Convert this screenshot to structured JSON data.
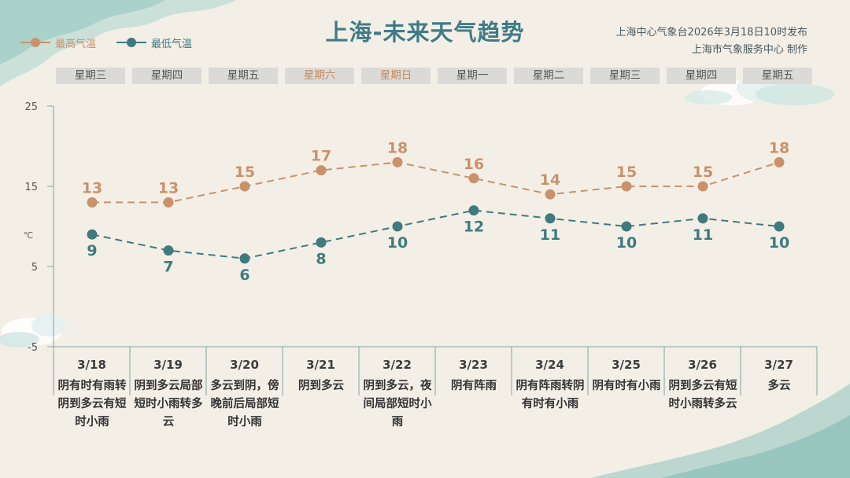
{
  "title": "上海-未来天气趋势",
  "publisher_line1": "上海中心气象台2026年3月18日10时发布",
  "publisher_line2": "上海市气象服务中心  制作",
  "legend": {
    "high_label": "最高气温",
    "low_label": "最低气温"
  },
  "colors": {
    "high": "#c9926b",
    "low": "#3e7a80",
    "axis": "#7ea6a6",
    "weekend": "#c48a60"
  },
  "weekdays": [
    "星期三",
    "星期四",
    "星期五",
    "星期六",
    "星期日",
    "星期一",
    "星期二",
    "星期三",
    "星期四",
    "星期五"
  ],
  "weekend_flags": [
    false,
    false,
    false,
    true,
    true,
    false,
    false,
    false,
    false,
    false
  ],
  "days": [
    {
      "date": "3/18",
      "desc": "阴有时有雨转阴到多云有短时小雨"
    },
    {
      "date": "3/19",
      "desc": "阴到多云局部短时小雨转多云"
    },
    {
      "date": "3/20",
      "desc": "多云到阴，傍晚前后局部短时小雨"
    },
    {
      "date": "3/21",
      "desc": "阴到多云"
    },
    {
      "date": "3/22",
      "desc": "阴到多云，夜间局部短时小雨"
    },
    {
      "date": "3/23",
      "desc": "阴有阵雨"
    },
    {
      "date": "3/24",
      "desc": "阴有阵雨转阴有时有小雨"
    },
    {
      "date": "3/25",
      "desc": "阴有时有小雨"
    },
    {
      "date": "3/26",
      "desc": "阴到多云有短时小雨转多云"
    },
    {
      "date": "3/27",
      "desc": "多云"
    }
  ],
  "chart_data": {
    "type": "line",
    "title": "上海-未来天气趋势",
    "xlabel": "",
    "ylabel": "℃",
    "x": [
      "3/18",
      "3/19",
      "3/20",
      "3/21",
      "3/22",
      "3/23",
      "3/24",
      "3/25",
      "3/26",
      "3/27"
    ],
    "yticks": [
      25,
      15,
      5,
      -5
    ],
    "ylim": [
      -5,
      25
    ],
    "grid": false,
    "legend_position": "top-left",
    "series": [
      {
        "name": "最高气温",
        "values": [
          13,
          13,
          15,
          17,
          18,
          16,
          14,
          15,
          15,
          18
        ]
      },
      {
        "name": "最低气温",
        "values": [
          9,
          7,
          6,
          8,
          10,
          12,
          11,
          10,
          11,
          10
        ]
      }
    ]
  }
}
